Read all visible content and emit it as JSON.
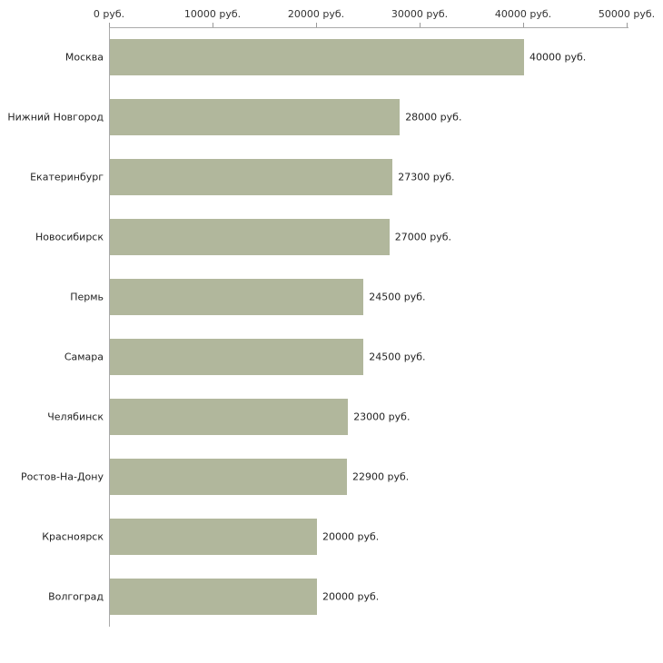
{
  "chart_data": {
    "type": "bar",
    "orientation": "horizontal",
    "title": "",
    "xlabel": "",
    "ylabel": "",
    "categories": [
      "Москва",
      "Нижний Новгород",
      "Екатеринбург",
      "Новосибирск",
      "Пермь",
      "Самара",
      "Челябинск",
      "Ростов-На-Дону",
      "Красноярск",
      "Волгоград"
    ],
    "values": [
      40000,
      28000,
      27300,
      27000,
      24500,
      24500,
      23000,
      22900,
      20000,
      20000
    ],
    "value_labels": [
      "40000 руб.",
      "28000 руб.",
      "27300 руб.",
      "27000 руб.",
      "24500 руб.",
      "24500 руб.",
      "23000 руб.",
      "22900 руб.",
      "20000 руб.",
      "20000 руб."
    ],
    "x_ticks": [
      "0 руб.",
      "10000 руб.",
      "20000 руб.",
      "30000 руб.",
      "40000 руб.",
      "50000 руб."
    ],
    "x_tick_values": [
      0,
      10000,
      20000,
      30000,
      40000,
      50000
    ],
    "xlim": [
      0,
      50000
    ],
    "bar_color": "#b1b79c",
    "axis_color": "#aaaaaa",
    "grid": "off",
    "legend": "none",
    "axis_position": "top"
  }
}
